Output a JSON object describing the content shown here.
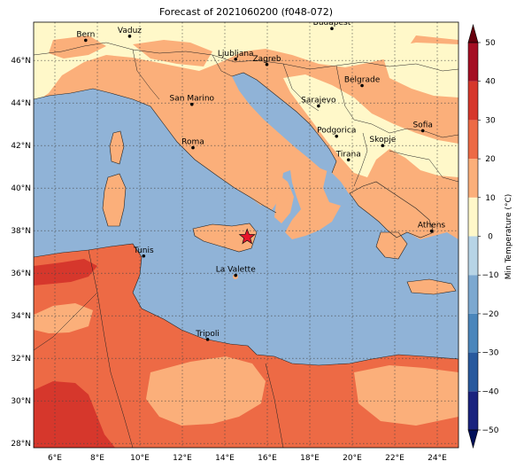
{
  "title": "Forecast of 2021060200 (f048-072)",
  "map": {
    "lon_range": [
      5,
      25
    ],
    "lat_range": [
      27.8,
      47.8
    ],
    "lon_ticks": [
      "6°E",
      "8°E",
      "10°E",
      "12°E",
      "14°E",
      "16°E",
      "18°E",
      "20°E",
      "22°E",
      "24°E"
    ],
    "lat_ticks": [
      "28°N",
      "30°N",
      "32°N",
      "34°N",
      "36°N",
      "38°N",
      "40°N",
      "42°N",
      "44°N",
      "46°N"
    ],
    "gridlines": true,
    "colors": {
      "sea": "#90b3d7",
      "band_10_20": "#fbaf7a",
      "band_20_30": "#ed6a45",
      "band_30_40": "#d6372c",
      "band_0_10": "#fff8c9"
    },
    "cities": [
      {
        "name": "Bern",
        "lon": 7.45,
        "lat": 46.95
      },
      {
        "name": "Vaduz",
        "lon": 9.52,
        "lat": 47.14
      },
      {
        "name": "Budapest",
        "lon": 19.04,
        "lat": 47.5
      },
      {
        "name": "Ljubljana",
        "lon": 14.51,
        "lat": 46.06
      },
      {
        "name": "Zagreb",
        "lon": 15.98,
        "lat": 45.81
      },
      {
        "name": "Belgrade",
        "lon": 20.46,
        "lat": 44.82
      },
      {
        "name": "San Marino",
        "lon": 12.45,
        "lat": 43.94
      },
      {
        "name": "Sarajevo",
        "lon": 18.41,
        "lat": 43.86
      },
      {
        "name": "Sofia",
        "lon": 23.32,
        "lat": 42.7
      },
      {
        "name": "Podgorica",
        "lon": 19.26,
        "lat": 42.44
      },
      {
        "name": "Skopje",
        "lon": 21.43,
        "lat": 42.0
      },
      {
        "name": "Roma",
        "lon": 12.5,
        "lat": 41.9
      },
      {
        "name": "Tirana",
        "lon": 19.82,
        "lat": 41.33
      },
      {
        "name": "Athens",
        "lon": 23.73,
        "lat": 37.98
      },
      {
        "name": "Tunis",
        "lon": 10.18,
        "lat": 36.81
      },
      {
        "name": "La Valette",
        "lon": 14.51,
        "lat": 35.9
      },
      {
        "name": "Tripoli",
        "lon": 13.19,
        "lat": 32.89
      }
    ],
    "star": {
      "lon": 15.05,
      "lat": 37.7,
      "color": "#e8142a"
    }
  },
  "colorbar": {
    "label": "Min Temperature (°C)",
    "ticks": [
      -50,
      -40,
      -30,
      -20,
      -10,
      0,
      10,
      20,
      30,
      40,
      50
    ],
    "min": -50,
    "max": 50,
    "bands": [
      {
        "from": -50,
        "to": -40,
        "color": "#1a237e"
      },
      {
        "from": -40,
        "to": -30,
        "color": "#28599d"
      },
      {
        "from": -30,
        "to": -20,
        "color": "#4b86bb"
      },
      {
        "from": -20,
        "to": -10,
        "color": "#7ca8d0"
      },
      {
        "from": -10,
        "to": 0,
        "color": "#b7d4e6"
      },
      {
        "from": 0,
        "to": 10,
        "color": "#fff8c9"
      },
      {
        "from": 10,
        "to": 20,
        "color": "#fbaf7a"
      },
      {
        "from": 20,
        "to": 30,
        "color": "#ed6a45"
      },
      {
        "from": 30,
        "to": 40,
        "color": "#d6372c"
      },
      {
        "from": 40,
        "to": 50,
        "color": "#a50f24"
      }
    ],
    "extend_min_color": "#000f5a",
    "extend_max_color": "#67000d"
  }
}
